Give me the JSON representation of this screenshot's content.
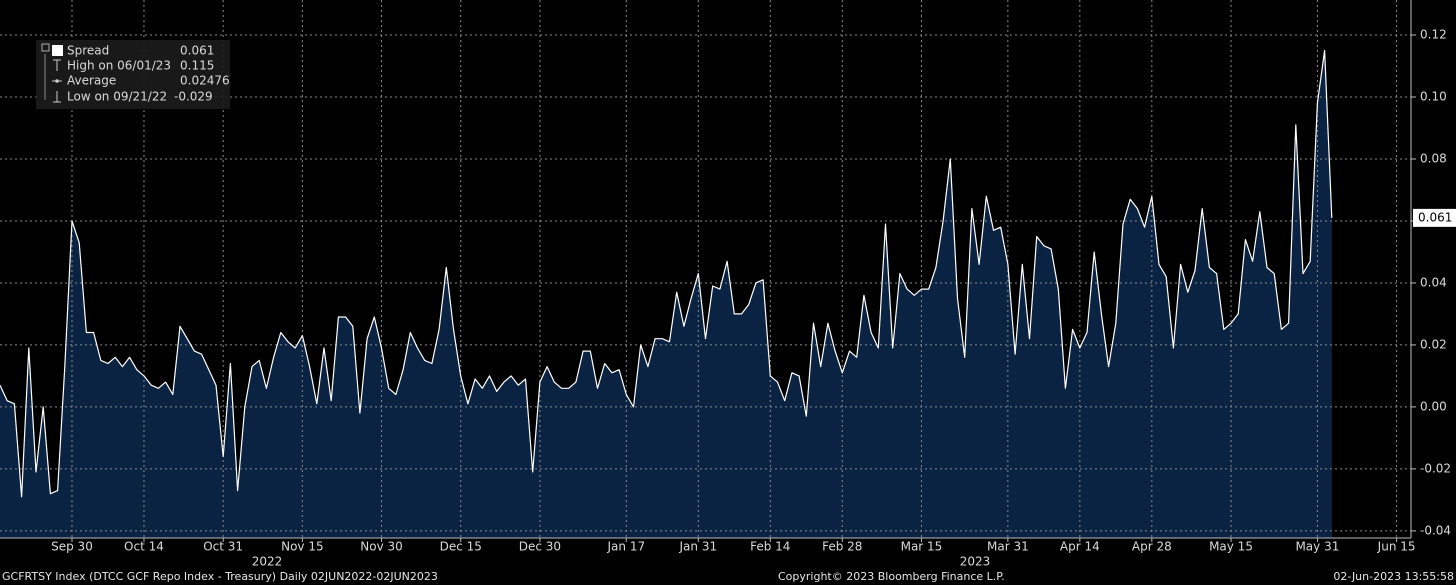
{
  "chart_data": {
    "type": "area",
    "footer_left": "GCFRTSY Index (DTCC GCF Repo Index - Treasury)  Daily 02JUN2022-02JUN2023",
    "footer_center": "Copyright© 2023 Bloomberg Finance L.P.",
    "footer_right": "02-Jun-2023 13:55:58",
    "years": [
      "2022",
      "2023"
    ],
    "legend_stats": [
      {
        "label": "High on 06/01/23"
      },
      {
        "label": "Average",
        "value": 0.02476
      },
      {
        "label": "Low on 09/21/22"
      }
    ],
    "ylim": [
      -0.0423,
      0.1313
    ],
    "yticks": [
      {
        "value": -0.04,
        "label": "-0.04"
      },
      {
        "value": -0.02,
        "label": "-0.02"
      },
      {
        "value": 0,
        "label": "0.00"
      },
      {
        "value": 0.02,
        "label": "0.02"
      },
      {
        "value": 0.04,
        "label": "0.04"
      },
      0.06,
      0.08,
      {
        "value": 0.1,
        "label": "0.10"
      },
      0.12
    ],
    "grid": true,
    "categories": [
      null,
      null,
      null,
      null,
      null,
      null,
      null,
      null,
      null,
      null,
      "Sep 30",
      null,
      null,
      null,
      null,
      null,
      null,
      null,
      null,
      null,
      "Oct 14",
      null,
      null,
      null,
      null,
      null,
      null,
      null,
      null,
      null,
      null,
      "Oct 31",
      null,
      null,
      null,
      null,
      null,
      null,
      null,
      null,
      null,
      null,
      "Nov 15",
      null,
      null,
      null,
      null,
      null,
      null,
      null,
      null,
      null,
      null,
      "Nov 30",
      null,
      null,
      null,
      null,
      null,
      null,
      null,
      null,
      null,
      null,
      "Dec 15",
      null,
      null,
      null,
      null,
      null,
      null,
      null,
      null,
      null,
      null,
      "Dec 30",
      null,
      null,
      null,
      null,
      null,
      null,
      null,
      null,
      null,
      null,
      null,
      "Jan 17",
      null,
      null,
      null,
      null,
      null,
      null,
      null,
      null,
      null,
      "Jan 31",
      null,
      null,
      null,
      null,
      null,
      null,
      null,
      null,
      null,
      "Feb 14",
      null,
      null,
      null,
      null,
      null,
      null,
      null,
      null,
      null,
      "Feb 28",
      null,
      null,
      null,
      null,
      null,
      null,
      null,
      null,
      null,
      null,
      "Mar 15",
      null,
      null,
      null,
      null,
      null,
      null,
      null,
      null,
      null,
      null,
      null,
      "Mar 31",
      null,
      null,
      null,
      null,
      null,
      null,
      null,
      null,
      null,
      "Apr 14",
      null,
      null,
      null,
      null,
      null,
      null,
      null,
      null,
      null,
      "Apr 28",
      null,
      null,
      null,
      null,
      null,
      null,
      null,
      null,
      null,
      null,
      "May 15",
      null,
      null,
      null,
      null,
      null,
      null,
      null,
      null,
      null,
      null,
      null,
      "May 31",
      null,
      null,
      null,
      null,
      null,
      null,
      null,
      null,
      null,
      null,
      "Jun 15",
      null,
      null
    ],
    "series": [
      {
        "name": "Spread",
        "color": "#ffffff",
        "fill": "#0b2343",
        "values": [
          0.007,
          0.002,
          0.001,
          -0.029,
          0.019,
          -0.021,
          0.0,
          -0.028,
          -0.027,
          0.013,
          0.06,
          0.053,
          0.024,
          0.024,
          0.015,
          0.014,
          0.016,
          0.013,
          0.016,
          0.012,
          0.01,
          0.007,
          0.006,
          0.008,
          0.004,
          0.026,
          0.022,
          0.018,
          0.017,
          0.012,
          0.007,
          -0.016,
          0.014,
          -0.027,
          0.0,
          0.013,
          0.015,
          0.006,
          0.016,
          0.024,
          0.021,
          0.019,
          0.023,
          0.013,
          0.001,
          0.019,
          0.002,
          0.029,
          0.029,
          0.026,
          -0.002,
          0.022,
          0.029,
          0.019,
          0.006,
          0.004,
          0.012,
          0.024,
          0.019,
          0.015,
          0.014,
          0.025,
          0.045,
          0.025,
          0.01,
          0.001,
          0.009,
          0.006,
          0.01,
          0.005,
          0.008,
          0.01,
          0.007,
          0.009,
          -0.021,
          0.008,
          0.013,
          0.008,
          0.006,
          0.006,
          0.008,
          0.018,
          0.018,
          0.006,
          0.014,
          0.011,
          0.012,
          0.004,
          0.0,
          0.02,
          0.013,
          0.022,
          0.022,
          0.021,
          0.037,
          0.026,
          0.035,
          0.043,
          0.022,
          0.039,
          0.038,
          0.047,
          0.03,
          0.03,
          0.033,
          0.04,
          0.041,
          0.01,
          0.008,
          0.002,
          0.011,
          0.01,
          -0.003,
          0.027,
          0.013,
          0.027,
          0.018,
          0.011,
          0.018,
          0.016,
          0.036,
          0.024,
          0.019,
          0.059,
          0.019,
          0.043,
          0.038,
          0.036,
          0.038,
          0.038,
          0.045,
          0.06,
          0.08,
          0.035,
          0.016,
          0.064,
          0.046,
          0.068,
          0.057,
          0.058,
          0.046,
          0.017,
          0.046,
          0.022,
          0.055,
          0.052,
          0.051,
          0.038,
          0.006,
          0.025,
          0.019,
          0.024,
          0.05,
          0.03,
          0.013,
          0.027,
          0.059,
          0.067,
          0.064,
          0.058,
          0.068,
          0.046,
          0.042,
          0.019,
          0.046,
          0.037,
          0.044,
          0.064,
          0.045,
          0.043,
          0.025,
          0.027,
          0.03,
          0.054,
          0.047,
          0.063,
          0.045,
          0.043,
          0.025,
          0.027,
          0.091,
          0.043,
          0.047,
          0.098,
          0.115,
          0.061,
          null,
          null,
          null,
          null,
          null,
          null,
          null,
          null,
          null,
          null,
          null
        ]
      }
    ]
  }
}
